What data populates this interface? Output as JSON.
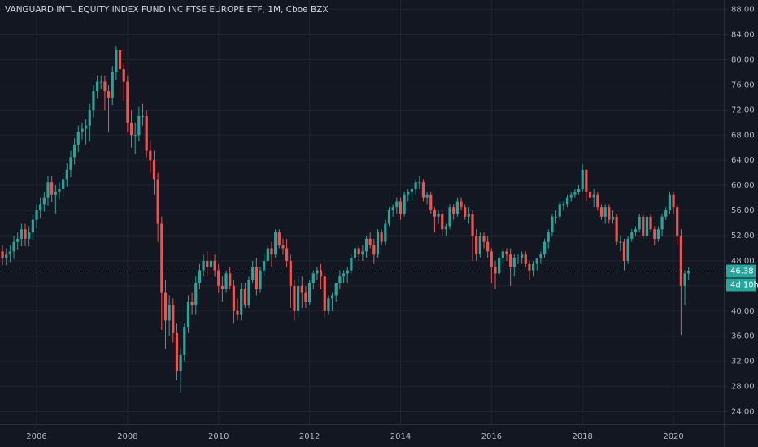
{
  "chart_data": {
    "type": "candlestick",
    "title": "VANGUARD INTL EQUITY INDEX FUND INC FTSE EUROPE ETF, 1M, Cboe BZX",
    "last_label": "46.38",
    "countdown": "4d 10h",
    "up_color": "#26a69a",
    "down_color": "#ef5350",
    "grid": true,
    "ylim": [
      22,
      89.5
    ],
    "yticks": [
      {
        "value": 24,
        "label": "24.00"
      },
      {
        "value": 28,
        "label": "28.00"
      },
      {
        "value": 32,
        "label": "32.00"
      },
      {
        "value": 36,
        "label": "36.00"
      },
      {
        "value": 40,
        "label": "40.00"
      },
      {
        "value": 44,
        "label": "44.00"
      },
      {
        "value": 48,
        "label": "48.00"
      },
      {
        "value": 52,
        "label": "52.00"
      },
      {
        "value": 56,
        "label": "56.00"
      },
      {
        "value": 60,
        "label": "60.00"
      },
      {
        "value": 64,
        "label": "64.00"
      },
      {
        "value": 68,
        "label": "68.00"
      },
      {
        "value": 72,
        "label": "72.00"
      },
      {
        "value": 76,
        "label": "76.00"
      },
      {
        "value": 80,
        "label": "80.00"
      },
      {
        "value": 84,
        "label": "84.00"
      },
      {
        "value": 88,
        "label": "88.00"
      }
    ],
    "categories": [
      null,
      null,
      null,
      null,
      null,
      null,
      null,
      null,
      null,
      null,
      "2006",
      null,
      null,
      null,
      null,
      null,
      null,
      null,
      null,
      null,
      null,
      null,
      null,
      null,
      null,
      null,
      null,
      null,
      null,
      null,
      null,
      null,
      null,
      null,
      "2008",
      null,
      null,
      null,
      null,
      null,
      null,
      null,
      null,
      null,
      null,
      null,
      null,
      null,
      null,
      null,
      null,
      null,
      null,
      null,
      null,
      null,
      null,
      null,
      "2010",
      null,
      null,
      null,
      null,
      null,
      null,
      null,
      null,
      null,
      null,
      null,
      null,
      null,
      null,
      null,
      null,
      null,
      null,
      null,
      null,
      null,
      null,
      null,
      "2012",
      null,
      null,
      null,
      null,
      null,
      null,
      null,
      null,
      null,
      null,
      null,
      null,
      null,
      null,
      null,
      null,
      null,
      null,
      null,
      null,
      null,
      null,
      null,
      "2014",
      null,
      null,
      null,
      null,
      null,
      null,
      null,
      null,
      null,
      null,
      null,
      null,
      null,
      null,
      null,
      null,
      null,
      null,
      null,
      null,
      null,
      null,
      null,
      "2016",
      null,
      null,
      null,
      null,
      null,
      null,
      null,
      null,
      null,
      null,
      null,
      null,
      null,
      null,
      null,
      null,
      null,
      null,
      null,
      null,
      null,
      null,
      null,
      "2018",
      null,
      null,
      null,
      null,
      null,
      null,
      null,
      null,
      null,
      null,
      null,
      null,
      null,
      null,
      null,
      null,
      null,
      null,
      null,
      null,
      null,
      null,
      null,
      "2020",
      null,
      null,
      null,
      null
    ],
    "open": [
      49,
      49.5,
      48.5,
      49,
      49.5,
      51,
      51.5,
      53,
      51.5,
      52.5,
      54.5,
      56,
      57,
      58,
      60.5,
      58.5,
      59,
      59.5,
      61,
      62.5,
      64.5,
      66.5,
      68.5,
      69,
      69.5,
      72,
      75,
      76.5,
      76.5,
      75,
      74,
      78,
      81.5,
      78.5,
      76.5,
      70,
      68,
      68,
      71,
      71,
      65.5,
      64,
      61,
      54,
      43,
      38.5,
      41,
      36.5,
      30.5,
      33,
      37.5,
      41.5,
      41,
      44.5,
      46.5,
      48,
      47,
      48,
      46.5,
      44,
      43.5,
      46,
      44,
      40,
      39.5,
      43.5,
      41,
      45,
      47,
      43.5,
      46.5,
      48,
      50,
      49,
      52.5,
      50.5,
      50,
      48,
      44,
      40,
      44,
      43,
      41.5,
      44.5,
      46,
      46.5,
      45.5,
      40,
      42,
      42.5,
      44.5,
      45.5,
      46,
      46.5,
      48.5,
      50,
      49,
      49.5,
      51.5,
      50.5,
      49,
      52.5,
      51,
      54,
      56,
      56.5,
      57.5,
      55.5,
      58.5,
      59,
      59.5,
      60.5,
      60.5,
      58,
      58.5,
      56,
      55,
      55.5,
      53,
      53.5,
      56.5,
      55.5,
      57.5,
      56.5,
      55,
      55.5,
      52,
      49,
      52,
      51,
      49.5,
      47,
      46,
      48.5,
      49.5,
      49,
      47,
      48.5,
      48.5,
      49,
      47.5,
      46.5,
      47.5,
      48.5,
      49,
      51,
      52.5,
      55,
      55,
      57,
      57,
      58,
      58.5,
      59,
      59.5,
      62.5,
      59,
      58,
      58.5,
      56.5,
      55,
      56.5,
      54.5,
      55,
      51,
      51,
      48,
      51.5,
      52.5,
      53,
      55,
      52,
      55,
      53,
      51.5,
      53,
      55,
      56,
      58.5,
      56.5,
      52,
      44,
      46
    ],
    "high": [
      50.5,
      50.5,
      50,
      50.5,
      52,
      52.5,
      54,
      54,
      53.5,
      55.5,
      57,
      58,
      59,
      61.5,
      61.5,
      60,
      60.5,
      62,
      63.5,
      65.5,
      67.5,
      69.5,
      70,
      70.5,
      73,
      76,
      77.5,
      77.5,
      77.5,
      76,
      79,
      82.2,
      82,
      79.5,
      77.5,
      72,
      70,
      72.5,
      73,
      72,
      67,
      65.5,
      62,
      55,
      45,
      42.5,
      42,
      38,
      34,
      38,
      42.5,
      43,
      45.5,
      47.5,
      49,
      49.5,
      49.5,
      49,
      47.5,
      45.5,
      46.5,
      47,
      45,
      42,
      44.5,
      44.5,
      45.5,
      48,
      48.5,
      47,
      49,
      50.5,
      51,
      53,
      53,
      51.5,
      51.5,
      49,
      45,
      45.5,
      45.5,
      44,
      45,
      46.5,
      47,
      47.5,
      46,
      42.5,
      43,
      44.5,
      46.5,
      46.5,
      47,
      49,
      50.5,
      50.5,
      50.5,
      52,
      52.5,
      51.5,
      53,
      53,
      54.5,
      56.5,
      57,
      58,
      58,
      59,
      59.5,
      60,
      61,
      61.5,
      61,
      59,
      59,
      56.5,
      56,
      56,
      54,
      57,
      57,
      58,
      58,
      57,
      56.5,
      56,
      53,
      52.5,
      52.5,
      52,
      50,
      48,
      49,
      50,
      50,
      50,
      49,
      49,
      49.5,
      49.5,
      48,
      48,
      48.5,
      49.5,
      51.5,
      53,
      55.5,
      56,
      57.5,
      57.5,
      58.5,
      59,
      59.5,
      60,
      63.4,
      62.5,
      60,
      59.5,
      59,
      57,
      57,
      57,
      56,
      55.5,
      52,
      51.5,
      52,
      53,
      53.5,
      55.5,
      55.5,
      55.5,
      55.5,
      53.5,
      53.5,
      55.5,
      56.5,
      59,
      59,
      57,
      53,
      46.5,
      47
    ],
    "low": [
      47.8,
      47.3,
      47.3,
      47.8,
      48.3,
      49.8,
      50.3,
      50.3,
      50.3,
      51.3,
      53.3,
      54.8,
      55.8,
      56.8,
      57.3,
      55.5,
      57.8,
      58.3,
      59.8,
      61.3,
      63.3,
      65.3,
      67.3,
      66.5,
      67,
      70.8,
      73.8,
      75.3,
      72,
      68.5,
      72.8,
      76.8,
      74,
      73.5,
      68.5,
      66,
      65,
      67,
      69.5,
      64.5,
      62,
      58.5,
      51,
      37,
      34,
      36,
      35,
      29,
      27,
      32,
      36.5,
      39.5,
      39.5,
      43.5,
      45.5,
      45.5,
      46,
      45.5,
      43,
      41.5,
      43,
      43.5,
      38,
      38.5,
      38.5,
      40.5,
      40.5,
      44.5,
      42.5,
      43,
      45.5,
      47.5,
      47,
      48.5,
      50,
      49,
      47,
      40.5,
      38.5,
      39,
      40.5,
      40.5,
      41,
      43.5,
      45,
      43.5,
      39,
      39.5,
      40,
      41.5,
      43.5,
      44.5,
      44.5,
      46,
      48,
      48,
      48,
      48.5,
      50,
      47.5,
      48.5,
      50.5,
      50.5,
      53.5,
      55,
      55.5,
      54.5,
      55,
      57.5,
      57.5,
      58.5,
      59.5,
      57.5,
      57,
      55.5,
      52.5,
      54,
      52,
      52,
      53,
      54.5,
      55,
      56,
      54.5,
      54,
      48,
      48,
      48.5,
      50,
      48.5,
      44.5,
      43.5,
      45.5,
      47.5,
      48,
      44,
      45.5,
      47.5,
      47.5,
      47,
      45,
      45.5,
      46.5,
      47.5,
      48.5,
      50,
      52,
      54,
      54.5,
      56,
      56.5,
      57.5,
      58,
      58.5,
      59,
      57.5,
      57,
      56.5,
      56,
      54.5,
      54,
      54,
      54,
      50.5,
      49.5,
      46.5,
      47.5,
      51,
      52,
      52.5,
      51.5,
      51.5,
      52.5,
      50.5,
      51,
      52,
      54.5,
      55.5,
      55.5,
      50.5,
      36.2,
      41,
      45
    ],
    "close": [
      49.5,
      48.5,
      49,
      49.5,
      51,
      51.5,
      53,
      51.5,
      52.5,
      54.5,
      56,
      57,
      58,
      60.5,
      58.5,
      59,
      59.5,
      61,
      62.5,
      64.5,
      66.5,
      68.5,
      69,
      69.5,
      72,
      75,
      76.5,
      76.5,
      75,
      74,
      78,
      81.5,
      78.5,
      76.5,
      70,
      68,
      68,
      71,
      71,
      65.5,
      64,
      61,
      54,
      43,
      38.5,
      41,
      36.5,
      30.5,
      33,
      37.5,
      41.5,
      41,
      44.5,
      46.5,
      48,
      47,
      48,
      46.5,
      44,
      43.5,
      46,
      44,
      40,
      39.5,
      43.5,
      41,
      45,
      47,
      43.5,
      46.5,
      48,
      50,
      49,
      52.5,
      50.5,
      50,
      48,
      44,
      40,
      44,
      43,
      41.5,
      44.5,
      46,
      46.5,
      45.5,
      40,
      42,
      42.5,
      44.5,
      45.5,
      46,
      46.5,
      48.5,
      50,
      49,
      49.5,
      51.5,
      50.5,
      49,
      52.5,
      51,
      54,
      56,
      56.5,
      57.5,
      55.5,
      58.5,
      59,
      59.5,
      60.5,
      60.5,
      58,
      58.5,
      56,
      55,
      55.5,
      53,
      53.5,
      56.5,
      55.5,
      57.5,
      56.5,
      55,
      55.5,
      52,
      49,
      52,
      51,
      49.5,
      47,
      46,
      48.5,
      49.5,
      49,
      47,
      48.5,
      48.5,
      49,
      47.5,
      46.5,
      47.5,
      48.5,
      49,
      51,
      52.5,
      55,
      55,
      57,
      57,
      58,
      58.5,
      59,
      59.5,
      62.5,
      59,
      58,
      58.5,
      56.5,
      55,
      56.5,
      54.5,
      55,
      51,
      51,
      48,
      51.5,
      52.5,
      53,
      55,
      52,
      55,
      53,
      51.5,
      53,
      55,
      56,
      58.5,
      56.5,
      52,
      44,
      46,
      46.38
    ]
  }
}
